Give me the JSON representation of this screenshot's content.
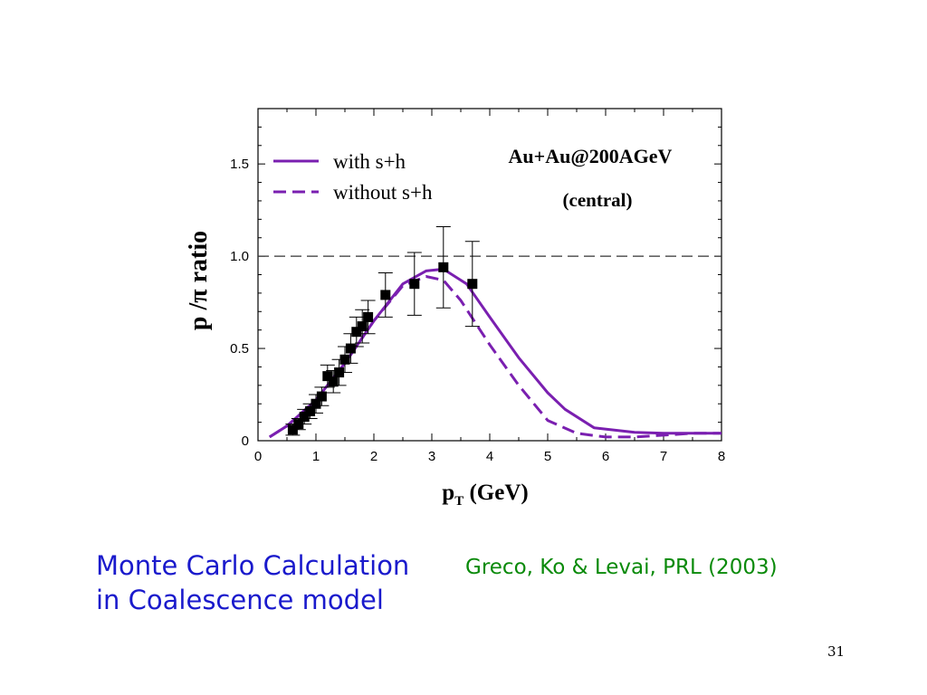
{
  "slide": {
    "caption_line1": "Monte Carlo Calculation",
    "caption_line2": "in Coalescence model",
    "citation": "Greco, Ko & Levai, PRL (2003)",
    "page_number": "31"
  },
  "chart_data": {
    "type": "line",
    "xlabel_main": "p",
    "xlabel_sub": "T",
    "xlabel_unit": " (GeV)",
    "ylabel": "p /π  ratio",
    "xlim": [
      0,
      8
    ],
    "ylim": [
      0,
      1.8
    ],
    "x_ticks": [
      0,
      1,
      2,
      3,
      4,
      5,
      6,
      7,
      8
    ],
    "y_ticks": [
      0,
      0.5,
      1.0,
      1.5
    ],
    "y_tick_labels": [
      "0",
      "0.5",
      "1.0",
      "1.5"
    ],
    "reference_line": {
      "y": 1.0,
      "style": "dashed"
    },
    "annotation_line1": "Au+Au@200AGeV",
    "annotation_line2": "(central)",
    "legend_position": "top-left",
    "colors": {
      "model": "#7a1fb0",
      "data": "#000000"
    },
    "series": [
      {
        "name": "with s+h",
        "style": "solid",
        "x": [
          0.2,
          0.5,
          1.0,
          1.5,
          2.0,
          2.5,
          2.9,
          3.2,
          3.6,
          4.0,
          4.5,
          5.0,
          5.3,
          5.8,
          6.5,
          7.0,
          7.5,
          8.0
        ],
        "y": [
          0.02,
          0.08,
          0.22,
          0.42,
          0.65,
          0.85,
          0.92,
          0.93,
          0.85,
          0.67,
          0.45,
          0.26,
          0.17,
          0.07,
          0.045,
          0.04,
          0.04,
          0.04
        ]
      },
      {
        "name": "without s+h",
        "style": "dashed",
        "x": [
          0.2,
          0.5,
          1.0,
          1.5,
          2.0,
          2.5,
          2.9,
          3.2,
          3.5,
          4.0,
          4.5,
          5.0,
          5.5,
          6.0,
          6.5,
          7.0,
          7.5,
          8.0
        ],
        "y": [
          0.02,
          0.08,
          0.22,
          0.42,
          0.65,
          0.84,
          0.89,
          0.87,
          0.76,
          0.52,
          0.3,
          0.11,
          0.04,
          0.02,
          0.02,
          0.03,
          0.04,
          0.04
        ]
      },
      {
        "name": "data",
        "style": "points",
        "x": [
          0.6,
          0.7,
          0.8,
          0.9,
          1.0,
          1.1,
          1.2,
          1.3,
          1.4,
          1.5,
          1.6,
          1.7,
          1.8,
          1.9,
          2.2,
          2.7,
          3.2,
          3.7
        ],
        "y": [
          0.06,
          0.09,
          0.13,
          0.16,
          0.2,
          0.24,
          0.35,
          0.32,
          0.37,
          0.44,
          0.5,
          0.59,
          0.62,
          0.67,
          0.79,
          0.85,
          0.94,
          0.85
        ],
        "err": [
          0.03,
          0.03,
          0.04,
          0.04,
          0.05,
          0.05,
          0.06,
          0.06,
          0.07,
          0.07,
          0.08,
          0.08,
          0.09,
          0.09,
          0.12,
          0.17,
          0.22,
          0.23
        ]
      }
    ]
  }
}
